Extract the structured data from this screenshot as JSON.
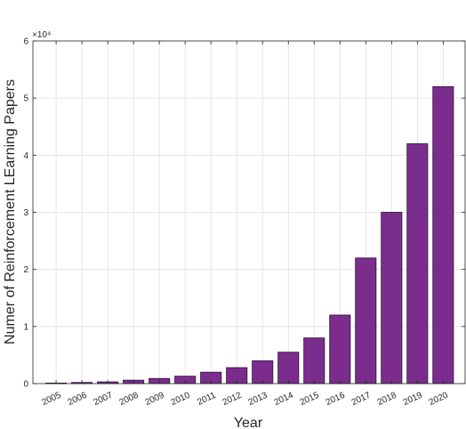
{
  "chart_data": {
    "type": "bar",
    "title": "",
    "xlabel": "Year",
    "ylabel": "Numer of Reinforcement LEarning Papers",
    "exponent_label": "×10⁴",
    "categories": [
      "2005",
      "2006",
      "2007",
      "2008",
      "2009",
      "2010",
      "2011",
      "2012",
      "2013",
      "2014",
      "2015",
      "2016",
      "2017",
      "2018",
      "2019",
      "2020"
    ],
    "values": [
      100,
      200,
      300,
      600,
      900,
      1300,
      2000,
      2800,
      4000,
      5500,
      8000,
      12000,
      22000,
      30000,
      42000,
      52000
    ],
    "ylim": [
      0,
      60000
    ],
    "yticks": [
      0,
      10000,
      20000,
      30000,
      40000,
      50000,
      60000
    ],
    "ytick_labels": [
      "0",
      "1",
      "2",
      "3",
      "4",
      "5",
      "6"
    ],
    "grid": true,
    "colors": {
      "bar_fill": "#7b2d8e",
      "bar_edge": "#2a0f33",
      "axis": "#262626",
      "grid": "#e0e0e0"
    }
  }
}
